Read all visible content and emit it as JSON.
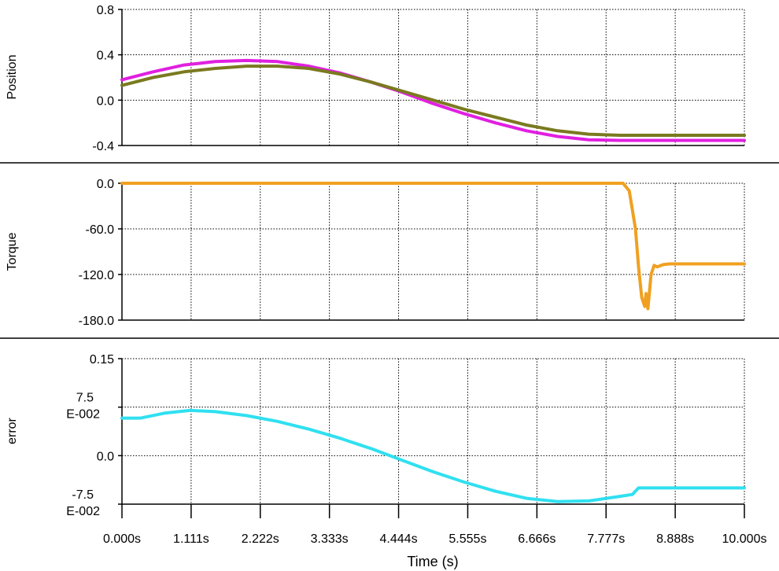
{
  "chart_data": [
    {
      "type": "line",
      "ylabel": "Position",
      "ylim": [
        -0.4,
        0.8
      ],
      "yticks": [
        "0.8",
        "0.4",
        "0.0",
        "-0.4"
      ],
      "grid": true,
      "series": [
        {
          "color": "#e020e0",
          "x": [
            0,
            0.5,
            1,
            1.5,
            2,
            2.5,
            3,
            3.5,
            4,
            4.5,
            5,
            5.5,
            6,
            6.5,
            7,
            7.5,
            8,
            8.5,
            9,
            9.5,
            10
          ],
          "y": [
            0.18,
            0.25,
            0.31,
            0.34,
            0.35,
            0.34,
            0.3,
            0.24,
            0.16,
            0.07,
            -0.03,
            -0.12,
            -0.2,
            -0.27,
            -0.32,
            -0.35,
            -0.355,
            -0.355,
            -0.355,
            -0.355,
            -0.355
          ]
        },
        {
          "color": "#7a7a20",
          "x": [
            0,
            0.5,
            1,
            1.5,
            2,
            2.5,
            3,
            3.5,
            4,
            4.5,
            5,
            5.5,
            6,
            6.5,
            7,
            7.5,
            8,
            8.5,
            9,
            9.5,
            10
          ],
          "y": [
            0.13,
            0.2,
            0.25,
            0.28,
            0.3,
            0.3,
            0.28,
            0.23,
            0.16,
            0.08,
            0.0,
            -0.08,
            -0.15,
            -0.22,
            -0.27,
            -0.3,
            -0.31,
            -0.31,
            -0.31,
            -0.31,
            -0.31
          ]
        }
      ]
    },
    {
      "type": "line",
      "ylabel": "Torque",
      "ylim": [
        -180,
        0
      ],
      "yticks": [
        "0.0",
        "-60.0",
        "-120.0",
        "-180.0"
      ],
      "grid": true,
      "series": [
        {
          "color": "#f0a020",
          "x": [
            0,
            8.05,
            8.15,
            8.25,
            8.3,
            8.35,
            8.4,
            8.42,
            8.45,
            8.5,
            8.55,
            8.6,
            8.7,
            8.8,
            9.0,
            9.5,
            10.0
          ],
          "y": [
            0,
            0,
            -10,
            -60,
            -110,
            -150,
            -162,
            -145,
            -165,
            -120,
            -108,
            -110,
            -107,
            -106,
            -106,
            -106,
            -106
          ]
        }
      ]
    },
    {
      "type": "line",
      "ylabel": "error",
      "ylim": [
        -0.075,
        0.15
      ],
      "yticks": [
        [
          "0.15"
        ],
        [
          "7.5",
          "E-002"
        ],
        [
          "0.0"
        ],
        [
          "-7.5",
          "E-002"
        ]
      ],
      "grid": true,
      "series": [
        {
          "color": "#30e0f0",
          "x": [
            0,
            0.3,
            0.7,
            1.1,
            1.5,
            2.0,
            2.5,
            3.0,
            3.5,
            4.0,
            4.5,
            5.0,
            5.5,
            6.0,
            6.5,
            7.0,
            7.5,
            8.0,
            8.2,
            8.3,
            8.4,
            9.0,
            9.5,
            10.0
          ],
          "y": [
            0.058,
            0.058,
            0.066,
            0.07,
            0.068,
            0.062,
            0.053,
            0.041,
            0.027,
            0.011,
            -0.007,
            -0.025,
            -0.041,
            -0.055,
            -0.066,
            -0.071,
            -0.07,
            -0.063,
            -0.06,
            -0.05,
            -0.05,
            -0.05,
            -0.05,
            -0.05
          ]
        }
      ]
    }
  ],
  "x_axis": {
    "xlim": [
      0,
      10
    ],
    "label": "Time (s)",
    "ticks": [
      "0.000s",
      "1.111s",
      "2.222s",
      "3.333s",
      "4.444s",
      "5.555s",
      "6.666s",
      "7.777s",
      "8.888s",
      "10.000s"
    ]
  }
}
